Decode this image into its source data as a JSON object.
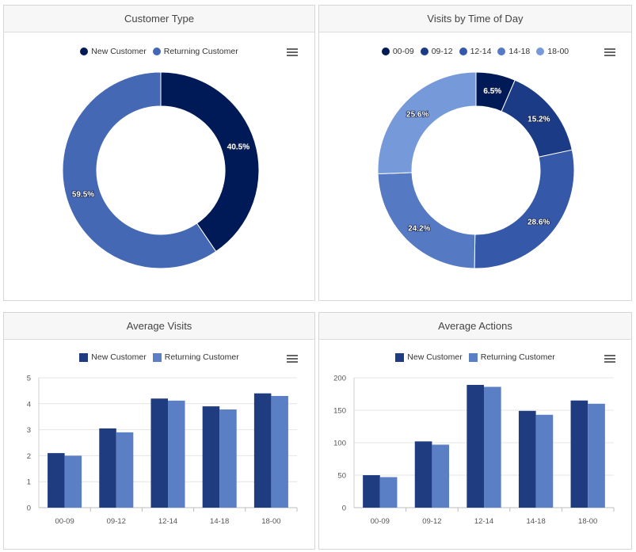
{
  "icons": {
    "menu": "hamburger-menu-icon"
  },
  "panels": {
    "customer_type": {
      "title": "Customer Type"
    },
    "visits_time": {
      "title": "Visits by Time of Day"
    },
    "avg_visits": {
      "title": "Average Visits"
    },
    "avg_actions": {
      "title": "Average Actions"
    }
  },
  "chart_data": [
    {
      "type": "pie",
      "title": "Customer Type",
      "legend": "top-center",
      "slices": [
        {
          "label": "New Customer",
          "value": 40.5,
          "display": "40.5%",
          "color": "#001a57"
        },
        {
          "label": "Returning Customer",
          "value": 59.5,
          "display": "59.5%",
          "color": "#4468b3"
        }
      ]
    },
    {
      "type": "pie",
      "title": "Visits by Time of Day",
      "legend": "top-center",
      "slices": [
        {
          "label": "00-09",
          "value": 6.5,
          "display": "6.5%",
          "color": "#001a57"
        },
        {
          "label": "09-12",
          "value": 15.2,
          "display": "15.2%",
          "color": "#1c3b86"
        },
        {
          "label": "12-14",
          "value": 28.6,
          "display": "28.6%",
          "color": "#3558a8"
        },
        {
          "label": "14-18",
          "value": 24.2,
          "display": "24.2%",
          "color": "#5679c4"
        },
        {
          "label": "18-00",
          "value": 25.6,
          "display": "25.6%",
          "color": "#7699d9"
        }
      ]
    },
    {
      "type": "bar",
      "title": "Average Visits",
      "legend": "top-center",
      "categories": [
        "00-09",
        "09-12",
        "12-14",
        "14-18",
        "18-00"
      ],
      "ylim": [
        0,
        5
      ],
      "yticks": [
        "0",
        "1",
        "2",
        "3",
        "4",
        "5"
      ],
      "grid": true,
      "series": [
        {
          "name": "New Customer",
          "values": [
            2.1,
            3.05,
            4.2,
            3.9,
            4.4
          ],
          "color": "#1f3c80"
        },
        {
          "name": "Returning Customer",
          "values": [
            2.0,
            2.9,
            4.12,
            3.78,
            4.3
          ],
          "color": "#5b7fc4"
        }
      ]
    },
    {
      "type": "bar",
      "title": "Average Actions",
      "legend": "top-center",
      "categories": [
        "00-09",
        "09-12",
        "12-14",
        "14-18",
        "18-00"
      ],
      "ylim": [
        0,
        200
      ],
      "yticks": [
        "0",
        "50",
        "100",
        "150",
        "200"
      ],
      "grid": true,
      "series": [
        {
          "name": "New Customer",
          "values": [
            50,
            102,
            189,
            149,
            165
          ],
          "color": "#1f3c80"
        },
        {
          "name": "Returning Customer",
          "values": [
            47,
            97,
            186,
            143,
            160
          ],
          "color": "#5b7fc4"
        }
      ]
    }
  ]
}
